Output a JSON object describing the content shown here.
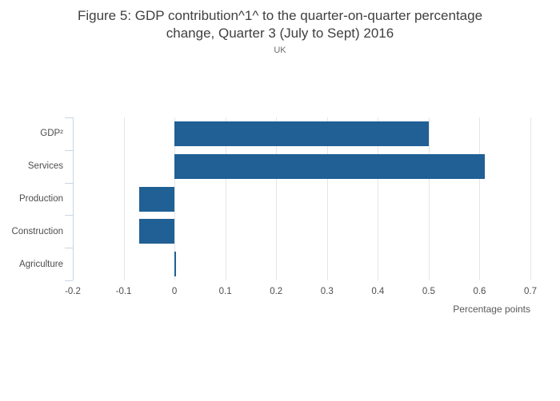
{
  "header": {
    "title_lines": [
      "Figure 5: GDP contribution^1^ to the quarter-on-quarter percentage",
      "change, Quarter 3 (July to Sept) 2016"
    ],
    "subtitle": "UK"
  },
  "chart_data": {
    "type": "bar",
    "orientation": "horizontal",
    "title": "Figure 5: GDP contribution^1^ to the quarter-on-quarter percentage change, Quarter 3 (July to Sept) 2016",
    "subtitle": "UK",
    "categories": [
      "GDP²",
      "Services",
      "Production",
      "Construction",
      "Agriculture"
    ],
    "values": [
      0.5,
      0.61,
      -0.07,
      -0.07,
      0.0
    ],
    "xlabel": "Percentage points",
    "ylabel": "",
    "xlim": [
      -0.2,
      0.7
    ],
    "xtick_values": [
      -0.2,
      -0.1,
      0,
      0.1,
      0.2,
      0.3,
      0.4,
      0.5,
      0.6,
      0.7
    ],
    "xtick_labels": [
      "-0.2",
      "-0.1",
      "0",
      "0.1",
      "0.2",
      "0.3",
      "0.4",
      "0.5",
      "0.6",
      "0.7"
    ],
    "grid": true,
    "legend": false,
    "colors": {
      "bar": "#206095",
      "grid": "#e6e6e6",
      "axis": "#c9d6e2",
      "tick_text": "#4d4d4d",
      "axis_title_text": "#595959",
      "title_text": "#404040",
      "subtitle_text": "#6e6e6e"
    }
  }
}
